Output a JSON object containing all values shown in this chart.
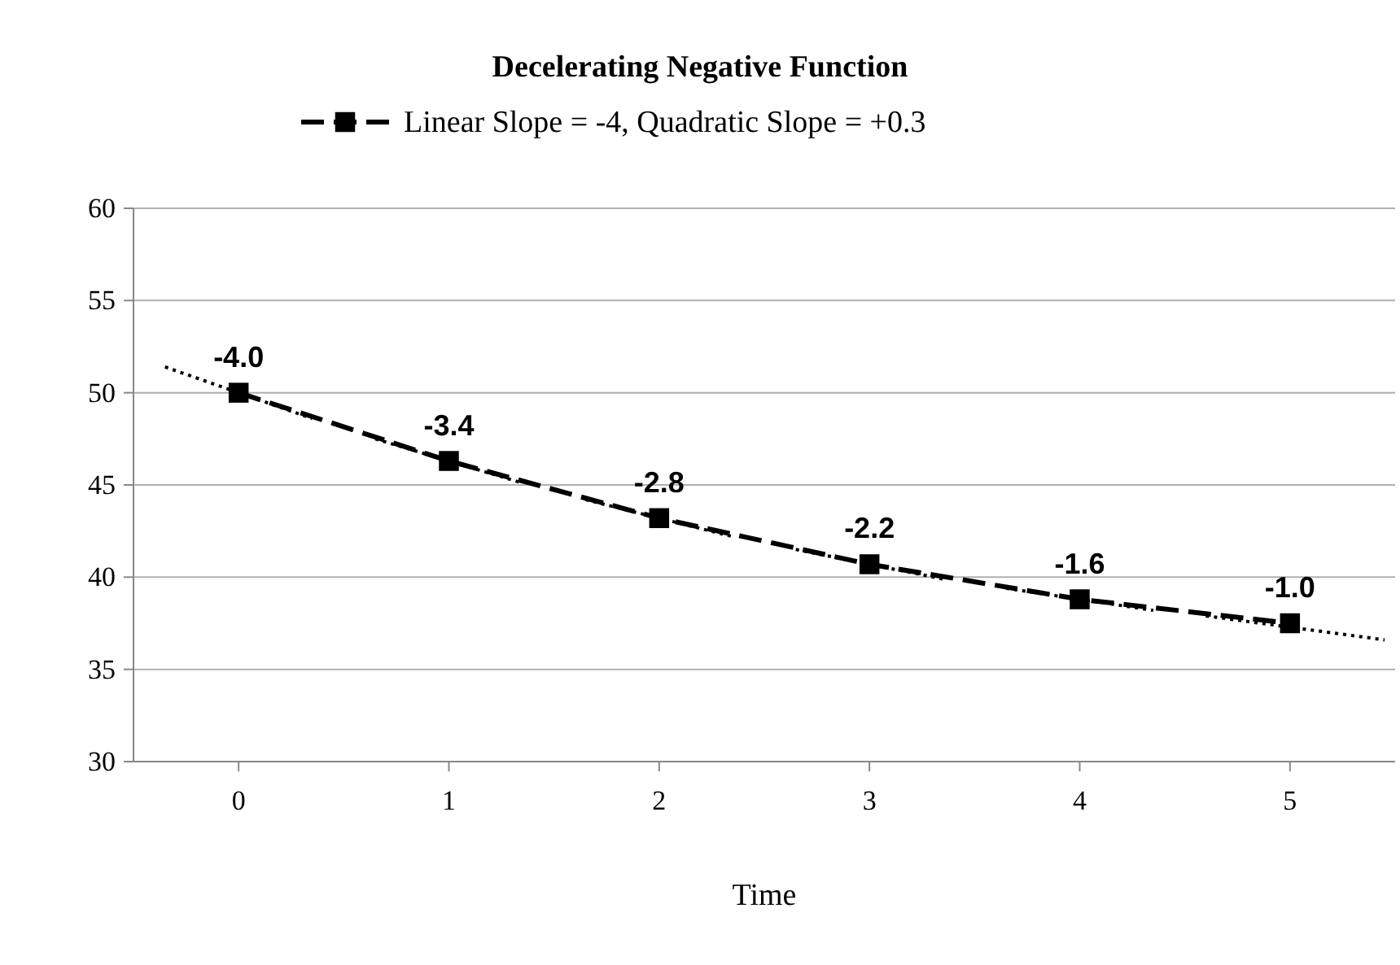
{
  "chart_data": {
    "type": "line",
    "title": "Decelerating Negative Function",
    "xlabel": "Time",
    "xlim": [
      -0.5,
      5.5
    ],
    "xticks": [
      0,
      1,
      2,
      3,
      4,
      5
    ],
    "ylim": [
      30,
      60
    ],
    "yticks": [
      30,
      35,
      40,
      45,
      50,
      55,
      60
    ],
    "grid": "y",
    "legend": "top",
    "series": [
      {
        "name": "Linear Slope = -4, Quadratic Slope = +0.3",
        "color": "#000000",
        "line_style": "dashed",
        "marker": "square",
        "x": [
          0,
          1,
          2,
          3,
          4,
          5
        ],
        "values": [
          50,
          46.3,
          43.2,
          40.7,
          38.8,
          37.5
        ]
      },
      {
        "color": "#000000",
        "line_style": "dotted",
        "marker": "none",
        "x": [
          -0.35,
          0.35
        ],
        "values": [
          51.4,
          48.6
        ]
      },
      {
        "color": "#000000",
        "line_style": "dotted",
        "marker": "none",
        "x": [
          0.65,
          1.35
        ],
        "values": [
          47.5,
          45.1
        ]
      },
      {
        "color": "#000000",
        "line_style": "dotted",
        "marker": "none",
        "x": [
          1.65,
          2.35
        ],
        "values": [
          44.2,
          42.2
        ]
      },
      {
        "color": "#000000",
        "line_style": "dotted",
        "marker": "none",
        "x": [
          2.65,
          3.35
        ],
        "values": [
          41.5,
          39.9
        ]
      },
      {
        "color": "#000000",
        "line_style": "dotted",
        "marker": "none",
        "x": [
          3.65,
          4.35
        ],
        "values": [
          39.4,
          38.2
        ]
      },
      {
        "color": "#000000",
        "line_style": "dotted",
        "marker": "none",
        "x": [
          4.6,
          5.45
        ],
        "values": [
          37.9,
          36.6
        ]
      }
    ],
    "annotations": [
      {
        "text": "-4.0",
        "x": 0,
        "y": 50
      },
      {
        "text": "-3.4",
        "x": 1,
        "y": 46.3
      },
      {
        "text": "-2.8",
        "x": 2,
        "y": 43.2
      },
      {
        "text": "-2.2",
        "x": 3,
        "y": 40.7
      },
      {
        "text": "-1.6",
        "x": 4,
        "y": 38.8
      },
      {
        "text": "-1.0",
        "x": 5,
        "y": 37.5
      }
    ]
  }
}
